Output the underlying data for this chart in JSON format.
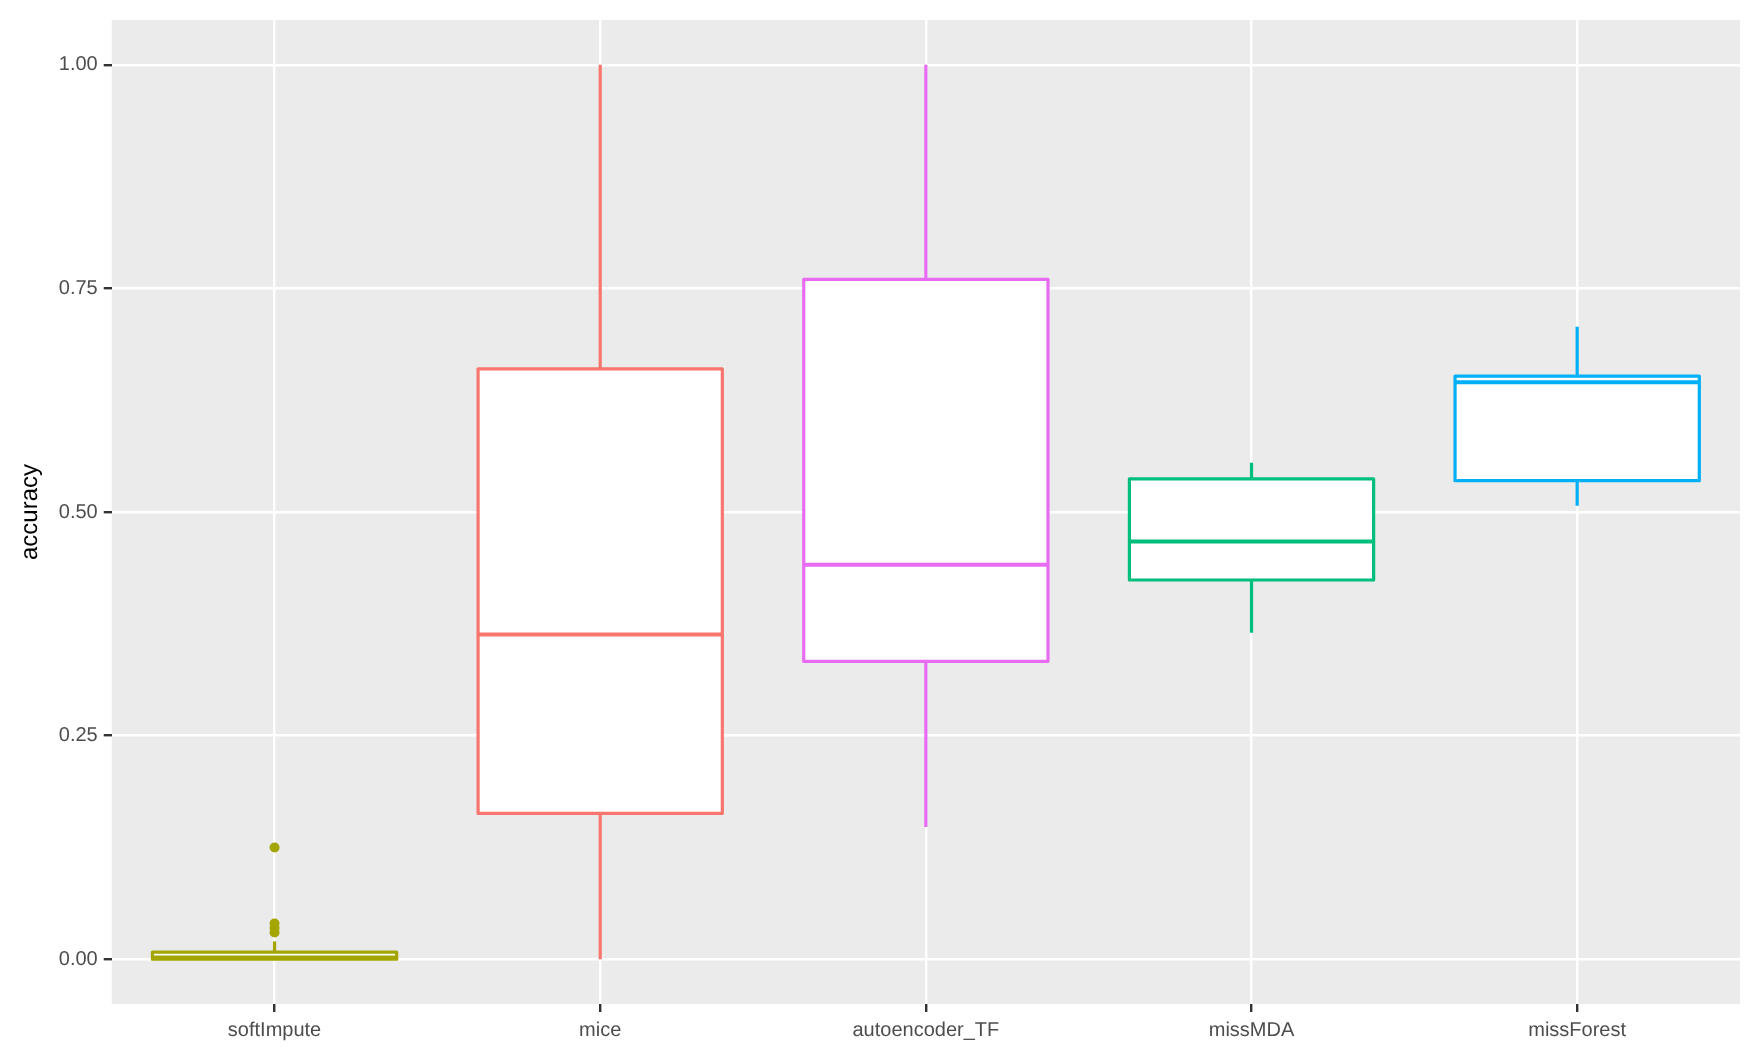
{
  "chart_data": {
    "type": "box",
    "ylabel": "accuracy",
    "categories": [
      "softImpute",
      "mice",
      "autoencoder_TF",
      "missMDA",
      "missForest"
    ],
    "colors": [
      "#a3a500",
      "#f8766d",
      "#e76bf3",
      "#00bf7d",
      "#00b0f6"
    ],
    "boxes": [
      {
        "low": 0,
        "q1": 0,
        "median": 0.002,
        "q3": 0.008,
        "high": 0.02,
        "outliers": [
          0.03,
          0.035,
          0.04,
          0.125
        ]
      },
      {
        "low": 0,
        "q1": 0.163,
        "median": 0.363,
        "q3": 0.66,
        "high": 1.0
      },
      {
        "low": 0.148,
        "q1": 0.333,
        "median": 0.441,
        "q3": 0.76,
        "high": 1.0
      },
      {
        "low": 0.365,
        "q1": 0.424,
        "median": 0.467,
        "q3": 0.537,
        "high": 0.555
      },
      {
        "low": 0.507,
        "q1": 0.535,
        "median": 0.645,
        "q3": 0.652,
        "high": 0.707
      }
    ],
    "ylim": [
      -0.05,
      1.05
    ],
    "yticks": [
      {
        "value": 0,
        "label": "0.00"
      },
      {
        "value": 0.25,
        "label": "0.25"
      },
      {
        "value": 0.5,
        "label": "0.50"
      },
      {
        "value": 0.75,
        "label": "0.75"
      },
      {
        "value": 1,
        "label": "1.00"
      }
    ],
    "grid": true
  }
}
